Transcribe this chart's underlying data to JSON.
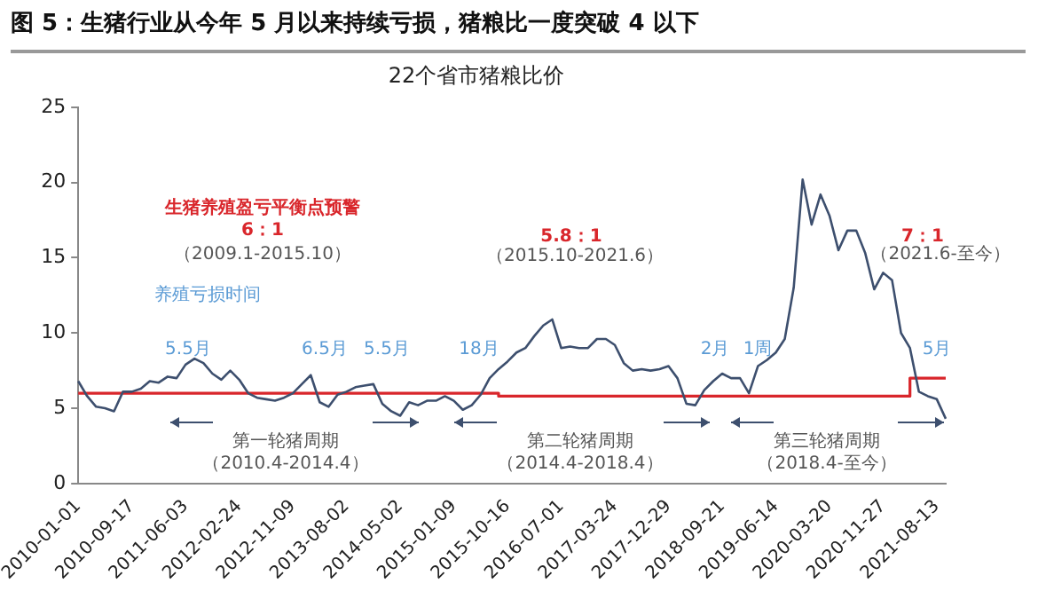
{
  "chart_data": {
    "type": "line",
    "title": "图 5：生猪行业从今年 5 月以来持续亏损，猪粮比一度突破 4 以下",
    "subtitle": "22个省市猪粮比价",
    "categories": [
      "2010-01-01",
      null,
      null,
      null,
      null,
      null,
      "2010-09-17",
      null,
      null,
      null,
      null,
      null,
      "2011-06-03",
      null,
      null,
      null,
      null,
      null,
      "2012-02-24",
      null,
      null,
      null,
      null,
      null,
      "2012-11-09",
      null,
      null,
      null,
      null,
      null,
      "2013-08-02",
      null,
      null,
      null,
      null,
      null,
      "2014-05-02",
      null,
      null,
      null,
      null,
      null,
      "2015-01-09",
      null,
      null,
      null,
      null,
      null,
      "2015-10-16",
      null,
      null,
      null,
      null,
      null,
      "2016-07-01",
      null,
      null,
      null,
      null,
      null,
      "2017-03-24",
      null,
      null,
      null,
      null,
      null,
      "2017-12-29",
      null,
      null,
      null,
      null,
      null,
      "2018-09-21",
      null,
      null,
      null,
      null,
      null,
      "2019-06-14",
      null,
      null,
      null,
      null,
      null,
      "2020-03-20",
      null,
      null,
      null,
      null,
      null,
      "2020-11-27",
      null,
      null,
      null,
      null,
      null,
      "2021-08-13",
      null
    ],
    "series": [
      {
        "color": "#3d4f6e",
        "values": [
          6.8,
          5.8,
          5.1,
          5.0,
          4.8,
          6.1,
          6.1,
          6.3,
          6.8,
          6.7,
          7.1,
          7.0,
          7.9,
          8.3,
          8.0,
          7.3,
          6.9,
          7.5,
          6.9,
          6.0,
          5.7,
          5.6,
          5.5,
          5.7,
          6.0,
          6.6,
          7.2,
          5.4,
          5.1,
          5.9,
          6.1,
          6.4,
          6.5,
          6.6,
          5.3,
          4.8,
          4.5,
          5.4,
          5.2,
          5.5,
          5.5,
          5.8,
          5.5,
          4.9,
          5.2,
          5.9,
          7.0,
          7.6,
          8.1,
          8.7,
          9.0,
          9.8,
          10.5,
          10.9,
          9.0,
          9.1,
          9.0,
          9.0,
          9.6,
          9.6,
          9.2,
          8.0,
          7.5,
          7.6,
          7.5,
          7.6,
          7.8,
          7.0,
          5.3,
          5.2,
          6.2,
          6.8,
          7.3,
          7.0,
          7.0,
          6.0,
          7.8,
          8.2,
          8.7,
          9.6,
          13.0,
          20.2,
          17.2,
          19.2,
          17.8,
          15.5,
          16.8,
          16.8,
          15.3,
          12.9,
          14.0,
          13.5,
          10.0,
          9.0,
          6.1,
          5.8,
          5.6,
          4.3
        ]
      },
      {
        "color": "#d9262b",
        "type": "step",
        "values": [
          6,
          6,
          6,
          6,
          6,
          6,
          6,
          6,
          6,
          6,
          6,
          6,
          6,
          6,
          6,
          6,
          6,
          6,
          6,
          6,
          6,
          6,
          6,
          6,
          6,
          6,
          6,
          6,
          6,
          6,
          6,
          6,
          6,
          6,
          6,
          6,
          6,
          6,
          6,
          6,
          6,
          6,
          6,
          6,
          6,
          6,
          6,
          6,
          5.8,
          5.8,
          5.8,
          5.8,
          5.8,
          5.8,
          5.8,
          5.8,
          5.8,
          5.8,
          5.8,
          5.8,
          5.8,
          5.8,
          5.8,
          5.8,
          5.8,
          5.8,
          5.8,
          5.8,
          5.8,
          5.8,
          5.8,
          5.8,
          5.8,
          5.8,
          5.8,
          5.8,
          5.8,
          5.8,
          5.8,
          5.8,
          5.8,
          5.8,
          5.8,
          5.8,
          5.8,
          5.8,
          5.8,
          5.8,
          5.8,
          5.8,
          5.8,
          5.8,
          5.8,
          5.8,
          7,
          7,
          7,
          7
        ]
      }
    ],
    "ylim": [
      0,
      25
    ],
    "yticks": [
      0,
      5,
      10,
      15,
      20,
      25
    ],
    "grid": false,
    "legend": false,
    "marker": "none",
    "annotations": [
      "生猪养殖盈亏平衡点预警",
      "6：1",
      "（2009.1-2015.10）",
      "养殖亏损时间",
      "5.5月",
      "6.5月",
      "5.5月",
      "18月",
      "5.8：1",
      "（2015.10-2021.6）",
      "2月",
      "1周",
      "7：1",
      "（2021.6-至今）",
      "5月",
      "第一轮猪周期",
      "（2010.4-2014.4）",
      "第二轮猪周期",
      "（2014.4-2018.4）",
      "第三轮猪周期",
      "（2018.4-至今）"
    ]
  }
}
